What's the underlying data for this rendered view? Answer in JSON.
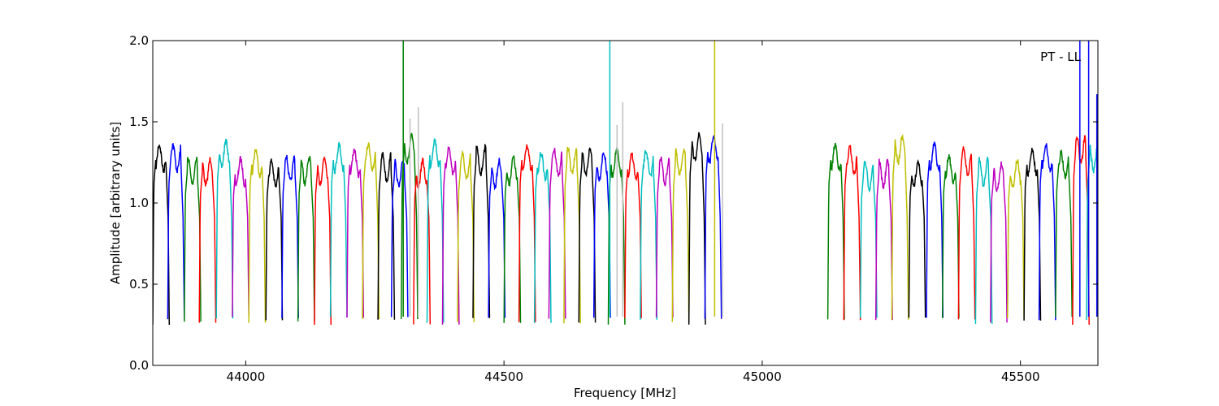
{
  "chart_data": {
    "type": "line",
    "title": "",
    "xlabel": "Frequency [MHz]",
    "ylabel": "Amplitude [arbitrary units]",
    "annotation": "PT - LL",
    "xlim": [
      43820,
      45650
    ],
    "ylim": [
      0.0,
      2.0
    ],
    "x_ticks": [
      44000,
      44500,
      45000,
      45500
    ],
    "y_ticks": [
      0.0,
      0.5,
      1.0,
      1.5,
      2.0
    ],
    "x_tick_labels": [
      "44000",
      "44500",
      "45000",
      "45500"
    ],
    "y_tick_labels": [
      "0.0",
      "0.5",
      "1.0",
      "1.5",
      "2.0"
    ],
    "grid": false,
    "legend": "none",
    "band_cycle_colors": [
      "#0000ff",
      "#008000",
      "#ff0000",
      "#00bfbf",
      "#bf00bf",
      "#bfbf00",
      "#000000"
    ],
    "band_first_color_index": 6,
    "band_width_mhz": 32,
    "band_starts": [
      43820,
      43849,
      43881,
      43910,
      43943,
      43974,
      44006,
      44039,
      44070,
      44101,
      44133,
      44164,
      44196,
      44226,
      44256,
      44282,
      44301,
      44325,
      44351,
      44381,
      44410,
      44440,
      44470,
      44500,
      44529,
      44559,
      44587,
      44616,
      44645,
      44674,
      44702,
      44734,
      44764,
      44795,
      44826,
      44858,
      44889,
      45127,
      45158,
      45190,
      45220,
      45251,
      45284,
      45318,
      45349,
      45380,
      45413,
      45442,
      45475,
      45507,
      45536,
      45568,
      45601,
      45628
    ],
    "band_peak_values": [
      1.3,
      1.3,
      1.22,
      1.21,
      1.32,
      1.21,
      1.27,
      1.2,
      1.23,
      1.22,
      1.22,
      1.3,
      1.27,
      1.3,
      1.24,
      1.2,
      1.35,
      1.2,
      1.33,
      1.28,
      1.24,
      1.28,
      1.2,
      1.22,
      1.3,
      1.25,
      1.27,
      1.28,
      1.27,
      1.25,
      1.27,
      1.24,
      1.26,
      1.22,
      1.27,
      1.36,
      1.35,
      1.3,
      1.28,
      1.19,
      1.2,
      1.35,
      1.2,
      1.3,
      1.23,
      1.27,
      1.21,
      1.18,
      1.2,
      1.27,
      1.3,
      1.25,
      1.35,
      1.3
    ],
    "band_min_value": 0.25,
    "spikes": [
      {
        "x": 44305,
        "y": 2.0,
        "color": "#008000"
      },
      {
        "x": 44318,
        "y": 1.52,
        "color": "#bfbfbf"
      },
      {
        "x": 44334,
        "y": 1.59,
        "color": "#bfbfbf"
      },
      {
        "x": 44705,
        "y": 2.0,
        "color": "#00bfbf"
      },
      {
        "x": 44719,
        "y": 1.48,
        "color": "#bfbfbf"
      },
      {
        "x": 44730,
        "y": 1.62,
        "color": "#bfbfbf"
      },
      {
        "x": 44908,
        "y": 2.0,
        "color": "#bfbf00"
      },
      {
        "x": 44923,
        "y": 1.49,
        "color": "#bfbfbf"
      },
      {
        "x": 45615,
        "y": 2.0,
        "color": "#0000ff"
      },
      {
        "x": 45632,
        "y": 2.0,
        "color": "#0000ff"
      },
      {
        "x": 45648,
        "y": 1.67,
        "color": "#0000ff"
      }
    ]
  }
}
